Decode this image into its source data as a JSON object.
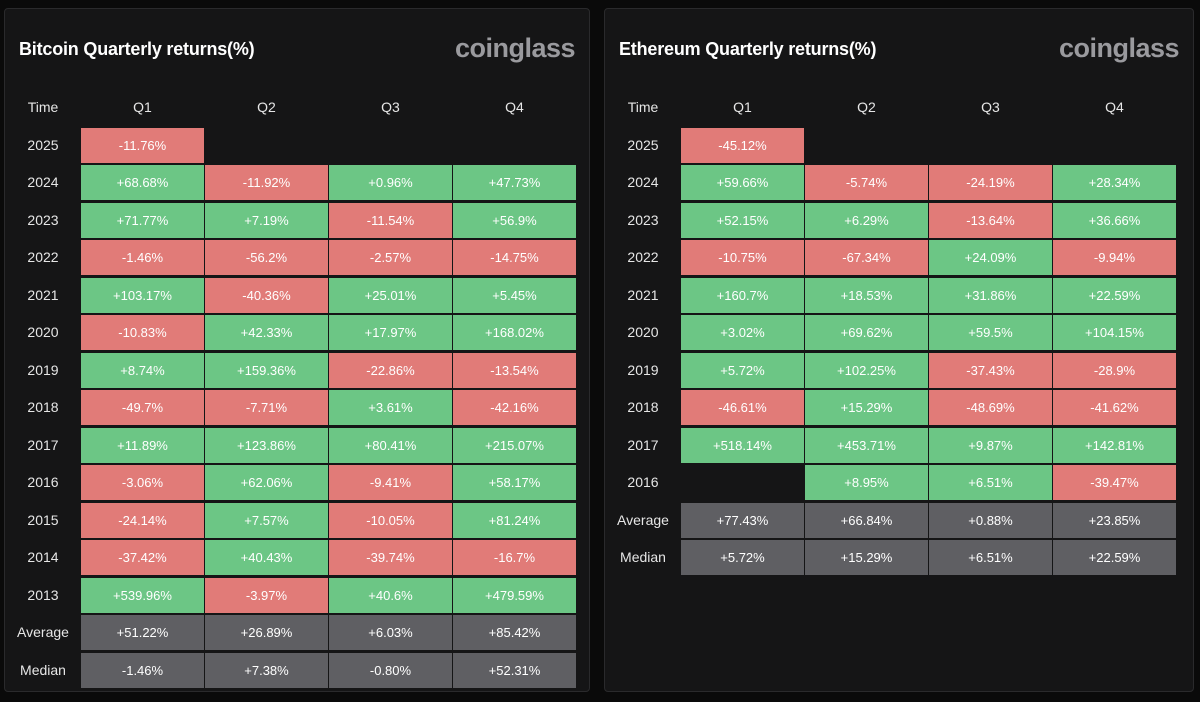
{
  "panels": [
    {
      "id": "btc",
      "title": "Bitcoin Quarterly returns(%)",
      "brand": "coinglass",
      "chart_data": {
        "type": "table",
        "title": "Bitcoin Quarterly returns(%)",
        "columns": [
          "Time",
          "Q1",
          "Q2",
          "Q3",
          "Q4"
        ],
        "rows": [
          {
            "label": "2025",
            "values": [
              "-11.76%",
              "",
              "",
              ""
            ]
          },
          {
            "label": "2024",
            "values": [
              "+68.68%",
              "-11.92%",
              "+0.96%",
              "+47.73%"
            ]
          },
          {
            "label": "2023",
            "values": [
              "+71.77%",
              "+7.19%",
              "-11.54%",
              "+56.9%"
            ]
          },
          {
            "label": "2022",
            "values": [
              "-1.46%",
              "-56.2%",
              "-2.57%",
              "-14.75%"
            ]
          },
          {
            "label": "2021",
            "values": [
              "+103.17%",
              "-40.36%",
              "+25.01%",
              "+5.45%"
            ]
          },
          {
            "label": "2020",
            "values": [
              "-10.83%",
              "+42.33%",
              "+17.97%",
              "+168.02%"
            ]
          },
          {
            "label": "2019",
            "values": [
              "+8.74%",
              "+159.36%",
              "-22.86%",
              "-13.54%"
            ]
          },
          {
            "label": "2018",
            "values": [
              "-49.7%",
              "-7.71%",
              "+3.61%",
              "-42.16%"
            ]
          },
          {
            "label": "2017",
            "values": [
              "+11.89%",
              "+123.86%",
              "+80.41%",
              "+215.07%"
            ]
          },
          {
            "label": "2016",
            "values": [
              "-3.06%",
              "+62.06%",
              "-9.41%",
              "+58.17%"
            ]
          },
          {
            "label": "2015",
            "values": [
              "-24.14%",
              "+7.57%",
              "-10.05%",
              "+81.24%"
            ]
          },
          {
            "label": "2014",
            "values": [
              "-37.42%",
              "+40.43%",
              "-39.74%",
              "-16.7%"
            ]
          },
          {
            "label": "2013",
            "values": [
              "+539.96%",
              "-3.97%",
              "+40.6%",
              "+479.59%"
            ]
          },
          {
            "label": "Average",
            "stat": true,
            "values": [
              "+51.22%",
              "+26.89%",
              "+6.03%",
              "+85.42%"
            ]
          },
          {
            "label": "Median",
            "stat": true,
            "values": [
              "-1.46%",
              "+7.38%",
              "-0.80%",
              "+52.31%"
            ]
          }
        ]
      }
    },
    {
      "id": "eth",
      "title": "Ethereum Quarterly returns(%)",
      "brand": "coinglass",
      "chart_data": {
        "type": "table",
        "title": "Ethereum Quarterly returns(%)",
        "columns": [
          "Time",
          "Q1",
          "Q2",
          "Q3",
          "Q4"
        ],
        "rows": [
          {
            "label": "2025",
            "values": [
              "-45.12%",
              "",
              "",
              ""
            ]
          },
          {
            "label": "2024",
            "values": [
              "+59.66%",
              "-5.74%",
              "-24.19%",
              "+28.34%"
            ]
          },
          {
            "label": "2023",
            "values": [
              "+52.15%",
              "+6.29%",
              "-13.64%",
              "+36.66%"
            ]
          },
          {
            "label": "2022",
            "values": [
              "-10.75%",
              "-67.34%",
              "+24.09%",
              "-9.94%"
            ]
          },
          {
            "label": "2021",
            "values": [
              "+160.7%",
              "+18.53%",
              "+31.86%",
              "+22.59%"
            ]
          },
          {
            "label": "2020",
            "values": [
              "+3.02%",
              "+69.62%",
              "+59.5%",
              "+104.15%"
            ]
          },
          {
            "label": "2019",
            "values": [
              "+5.72%",
              "+102.25%",
              "-37.43%",
              "-28.9%"
            ]
          },
          {
            "label": "2018",
            "values": [
              "-46.61%",
              "+15.29%",
              "-48.69%",
              "-41.62%"
            ]
          },
          {
            "label": "2017",
            "values": [
              "+518.14%",
              "+453.71%",
              "+9.87%",
              "+142.81%"
            ]
          },
          {
            "label": "2016",
            "values": [
              "",
              "+8.95%",
              "+6.51%",
              "-39.47%"
            ]
          },
          {
            "label": "Average",
            "stat": true,
            "values": [
              "+77.43%",
              "+66.84%",
              "+0.88%",
              "+23.85%"
            ]
          },
          {
            "label": "Median",
            "stat": true,
            "values": [
              "+5.72%",
              "+15.29%",
              "+6.51%",
              "+22.59%"
            ]
          }
        ]
      }
    }
  ],
  "colors": {
    "positive": "#6cc685",
    "negative": "#e17b78",
    "stat": "#5f5f63",
    "panel_bg": "#151516",
    "page_bg": "#0a0a0a"
  }
}
